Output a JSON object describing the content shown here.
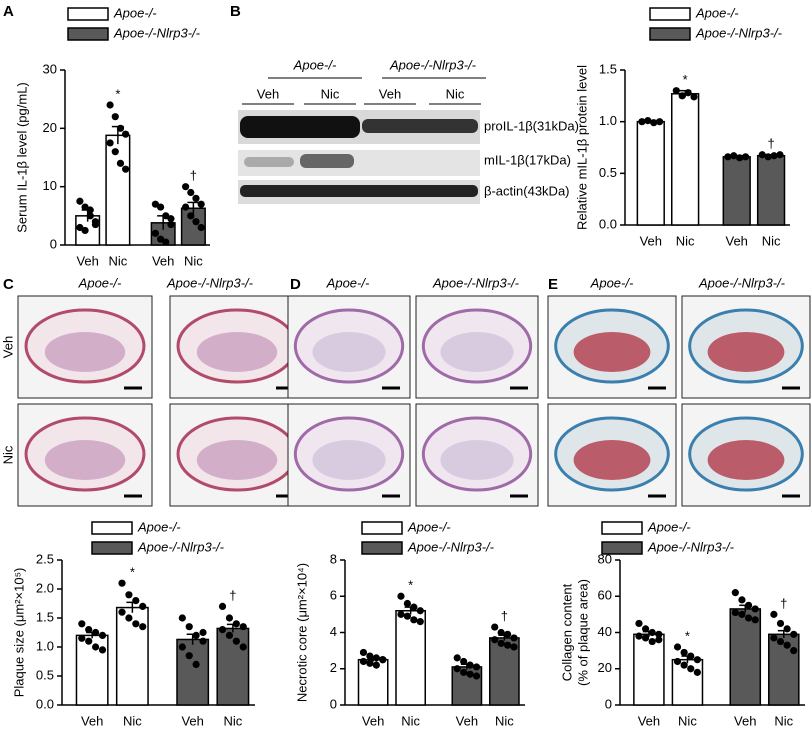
{
  "panel_labels": [
    "A",
    "B",
    "C",
    "D",
    "E"
  ],
  "blot": {
    "groups": [
      "Apoe-/-",
      "Apoe-/-Nlrp3-/-"
    ],
    "conditions": [
      "Veh",
      "Nic",
      "Veh",
      "Nic"
    ],
    "bands": [
      "proIL-1β(31kDa)",
      "mIL-1β(17kDa)",
      "β-actin(43kDa)"
    ]
  },
  "histology": [
    {
      "columns": [
        "Apoe-/-",
        "Apoe-/-Nlrp3-/-"
      ],
      "rows": [
        "Veh",
        "Nic"
      ]
    },
    {
      "columns": [
        "Apoe-/-",
        "Apoe-/-Nlrp3-/-"
      ]
    },
    {
      "columns": [
        "Apoe-/-",
        "Apoe-/-Nlrp3-/-"
      ]
    }
  ],
  "chart_data": [
    {
      "type": "bar",
      "ylabel": "Serum IL-1β level (pg/mL)",
      "categories": [
        "Veh",
        "Nic",
        "Veh",
        "Nic"
      ],
      "ylim": [
        0,
        30
      ],
      "yticks": [
        0,
        10,
        20,
        30
      ],
      "significance": [
        null,
        "*",
        null,
        "†"
      ],
      "series": [
        {
          "name": "Apoe-/-",
          "color": "#ffffff",
          "values": [
            5.0,
            18.8,
            null,
            null
          ],
          "errors": [
            1.0,
            1.5,
            null,
            null
          ],
          "points": [
            [
              7.5,
              6.5,
              5.0,
              4.0,
              3.0,
              2.5,
              6.0,
              3.5
            ],
            [
              24,
              22,
              20,
              19,
              17.5,
              16,
              14,
              13
            ],
            null,
            null
          ]
        },
        {
          "name": "Apoe-/-Nlrp3-/-",
          "color": "#595959",
          "values": [
            null,
            null,
            3.8,
            6.3
          ],
          "errors": [
            null,
            null,
            1.2,
            1.0
          ],
          "points": [
            null,
            null,
            [
              7.0,
              6.5,
              5.0,
              3.5,
              2.0,
              1.0,
              0.5,
              4.5
            ],
            [
              10,
              9,
              8,
              7,
              6.5,
              5,
              4,
              3
            ]
          ]
        }
      ]
    },
    {
      "type": "bar",
      "ylabel": "Relative mIL-1β protein level",
      "categories": [
        "Veh",
        "Nic",
        "Veh",
        "Nic"
      ],
      "ylim": [
        0,
        1.5
      ],
      "yticks": [
        {
          "value": 0,
          "label": "0.0"
        },
        0.5,
        {
          "value": 1,
          "label": "1.0"
        },
        1.5
      ],
      "significance": [
        null,
        "*",
        null,
        "†"
      ],
      "series": [
        {
          "name": "Apoe-/-",
          "color": "#ffffff",
          "values": [
            1.0,
            1.27,
            null,
            null
          ],
          "errors": [
            0.01,
            0.03,
            null,
            null
          ],
          "points": [
            [
              1.0,
              1.01,
              0.99,
              1.0
            ],
            [
              1.3,
              1.25,
              1.28,
              1.24
            ],
            null,
            null
          ]
        },
        {
          "name": "Apoe-/-Nlrp3-/-",
          "color": "#595959",
          "values": [
            null,
            null,
            0.66,
            0.67
          ],
          "errors": [
            null,
            null,
            0.01,
            0.01
          ],
          "points": [
            null,
            null,
            [
              0.66,
              0.67,
              0.65,
              0.66
            ],
            [
              0.68,
              0.66,
              0.67,
              0.68
            ]
          ]
        }
      ]
    },
    {
      "type": "bar",
      "ylabel": "Plaque size (μm²×10⁵)",
      "categories": [
        "Veh",
        "Nic",
        "Veh",
        "Nic"
      ],
      "ylim": [
        0,
        2.5
      ],
      "yticks": [
        {
          "value": 0,
          "label": "0.0"
        },
        0.5,
        {
          "value": 1,
          "label": "1.0"
        },
        1.5,
        {
          "value": 2,
          "label": "2.0"
        },
        2.5
      ],
      "significance": [
        null,
        "*",
        null,
        "†"
      ],
      "series": [
        {
          "name": "Apoe-/-",
          "color": "#ffffff",
          "values": [
            1.2,
            1.68,
            null,
            null
          ],
          "errors": [
            0.05,
            0.09,
            null,
            null
          ],
          "points": [
            [
              1.4,
              1.3,
              1.25,
              1.2,
              1.15,
              1.1,
              1.0,
              0.95
            ],
            [
              2.1,
              1.9,
              1.8,
              1.7,
              1.6,
              1.5,
              1.4,
              1.35
            ]
          ]
        },
        {
          "name": "Apoe-/-Nlrp3-/-",
          "color": "#595959",
          "values": [
            null,
            null,
            1.13,
            1.32
          ],
          "errors": [
            null,
            null,
            0.09,
            0.07
          ],
          "points": [
            null,
            null,
            [
              1.5,
              1.35,
              1.2,
              1.1,
              1.0,
              0.85,
              0.7,
              1.25
            ],
            [
              1.7,
              1.5,
              1.4,
              1.35,
              1.3,
              1.2,
              1.1,
              1.0
            ]
          ]
        }
      ]
    },
    {
      "type": "bar",
      "ylabel": "Necrotic core (μm²×10⁴)",
      "categories": [
        "Veh",
        "Nic",
        "Veh",
        "Nic"
      ],
      "ylim": [
        0,
        8
      ],
      "yticks": [
        0,
        2,
        4,
        6,
        8
      ],
      "significance": [
        null,
        "*",
        null,
        "†"
      ],
      "series": [
        {
          "name": "Apoe-/-",
          "color": "#ffffff",
          "values": [
            2.5,
            5.2,
            null,
            null
          ],
          "errors": [
            0.1,
            0.2,
            null,
            null
          ],
          "points": [
            [
              2.9,
              2.7,
              2.6,
              2.5,
              2.4,
              2.3,
              2.2,
              2.5
            ],
            [
              6.0,
              5.6,
              5.4,
              5.2,
              5.0,
              4.9,
              4.7,
              4.6
            ]
          ]
        },
        {
          "name": "Apoe-/-Nlrp3-/-",
          "color": "#595959",
          "values": [
            null,
            null,
            2.1,
            3.7
          ],
          "errors": [
            null,
            null,
            0.15,
            0.15
          ],
          "points": [
            null,
            null,
            [
              2.6,
              2.4,
              2.2,
              2.1,
              2.0,
              1.8,
              1.7,
              1.6
            ],
            [
              4.3,
              4.0,
              3.9,
              3.7,
              3.6,
              3.4,
              3.3,
              3.2
            ]
          ]
        }
      ]
    },
    {
      "type": "bar",
      "ylabel": [
        "Collagen content",
        "(% of plaque area)"
      ],
      "categories": [
        "Veh",
        "Nic",
        "Veh",
        "Nic"
      ],
      "ylim": [
        0,
        80
      ],
      "yticks": [
        0,
        20,
        40,
        60,
        80
      ],
      "significance": [
        null,
        "*",
        null,
        "†"
      ],
      "series": [
        {
          "name": "Apoe-/-",
          "color": "#ffffff",
          "values": [
            39,
            25,
            null,
            null
          ],
          "errors": [
            1.5,
            2.0,
            null,
            null
          ],
          "points": [
            [
              45,
              42,
              40,
              39,
              38,
              37,
              35,
              36
            ],
            [
              32,
              29,
              27,
              25,
              24,
              22,
              20,
              18
            ]
          ]
        },
        {
          "name": "Apoe-/-Nlrp3-/-",
          "color": "#595959",
          "values": [
            null,
            null,
            53,
            39
          ],
          "errors": [
            null,
            null,
            2.0,
            2.0
          ],
          "points": [
            null,
            null,
            [
              62,
              58,
              55,
              53,
              51,
              50,
              48,
              47
            ],
            [
              50,
              45,
              42,
              39,
              37,
              35,
              33,
              30
            ]
          ]
        }
      ]
    }
  ]
}
